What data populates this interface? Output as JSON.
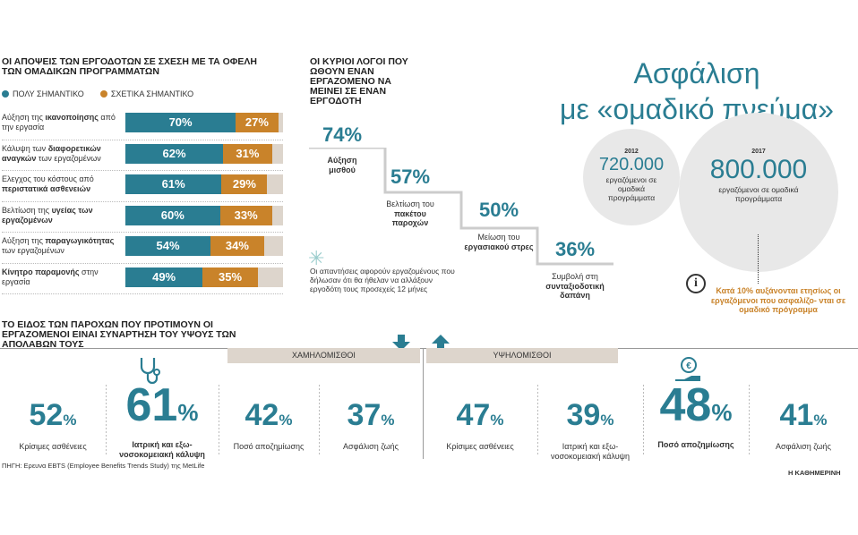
{
  "employer_views": {
    "title": "ΟΙ ΑΠΟΨΕΙΣ ΤΩΝ ΕΡΓΟΔΟΤΩΝ ΣΕ ΣΧΕΣΗ ΜΕ ΤΑ ΟΦΕΛΗ ΤΩΝ ΟΜΑΔΙΚΩΝ ΠΡΟΓΡΑΜΜΑΤΩΝ",
    "legend_a": "ΠΟΛΥ ΣΗΜΑΝΤΙΚΟ",
    "legend_b": "ΣΧΕΤΙΚΑ ΣΗΜΑΝΤΙΚΟ",
    "rows": [
      {
        "label_a": "Αύξηση της ",
        "label_b": "ικανοποίησης",
        "label_c": " από την εργασία",
        "a": "70%",
        "b": "27%"
      },
      {
        "label_a": "Κάλυψη των ",
        "label_b": "διαφορετικών αναγκών",
        "label_c": " των εργαζομένων",
        "a": "62%",
        "b": "31%"
      },
      {
        "label_a": "Ελεγχος του κόστους από ",
        "label_b": "περιστατικά ασθενειών",
        "label_c": "",
        "a": "61%",
        "b": "29%"
      },
      {
        "label_a": "Βελτίωση της ",
        "label_b": "υγείας των εργαζομένων",
        "label_c": "",
        "a": "60%",
        "b": "33%"
      },
      {
        "label_a": "Αύξηση της ",
        "label_b": "παραγωγικότητας",
        "label_c": " των εργαζομένων",
        "a": "54%",
        "b": "34%"
      },
      {
        "label_a": "",
        "label_b": "Κίνητρο παραμονής",
        "label_c": " στην εργασία",
        "a": "49%",
        "b": "35%"
      }
    ]
  },
  "reasons": {
    "title": "ΟΙ ΚΥΡΙΟΙ ΛΟΓΟΙ ΠΟΥ ΩΘΟΥΝ ΕΝΑΝ ΕΡΓΑΖΟΜΕΝΟ ΝΑ ΜΕΙΝΕΙ ΣΕ ΕΝΑΝ ΕΡΓΟΔΟΤΗ",
    "steps": [
      {
        "value": "74%",
        "label_plain": "",
        "label_bold": "Αύξηση μισθού"
      },
      {
        "value": "57%",
        "label_plain": "Βελτίωση του ",
        "label_bold": "πακέτου παροχών"
      },
      {
        "value": "50%",
        "label_plain": "Μείωση του ",
        "label_bold": "εργασιακού στρες"
      },
      {
        "value": "36%",
        "label_plain": "Συμβολή στη ",
        "label_bold": "συνταξιοδοτική δαπάνη"
      }
    ],
    "note": "Οι απαντήσεις αφορούν εργαζομένους που δήλωσαν ότι θα ήθελαν να αλλάξουν εργοδότη τους προσεχείς 12 μήνες"
  },
  "headline": {
    "line1": "Ασφάλιση",
    "line2": "με «ομαδικό πνεύμα»"
  },
  "circles": {
    "small_year": "2012",
    "small_value": "720.000",
    "small_label": "εργαζόμενοι σε ομαδικά προγράμματα",
    "big_year": "2017",
    "big_value": "800.000",
    "big_label": "εργαζόμενοι σε ομαδικά προγράμματα",
    "info_icon": "i",
    "info_text": "Κατά 10% αυξάνονται ετησίως οι εργαζόμενοι που ασφαλίζο- νται σε ομαδικό πρόγραμμα"
  },
  "benefits": {
    "title": "ΤΟ ΕΙΔΟΣ ΤΩΝ ΠΑΡΟΧΩΝ ΠΟΥ ΠΡΟΤΙΜΟΥΝ ΟΙ ΕΡΓΑΖΟΜΕΝΟΙ ΕΙΝΑΙ ΣΥΝΑΡΤΗΣΗ ΤΟΥ ΥΨΟΥΣ ΤΩΝ ΑΠΟΛΑΒΩΝ ΤΟΥΣ",
    "low_label": "ΧΑΜΗΛΟΜΙΣΘΟΙ",
    "high_label": "ΥΨΗΛΟΜΙΣΘΟΙ",
    "low": [
      {
        "value": "52",
        "label": "Κρίσιμες ασθένειες"
      },
      {
        "value": "61",
        "label": "Ιατρική και εξω- νοσοκομειακή κάλυψη"
      },
      {
        "value": "42",
        "label": "Ποσό αποζημίωσης"
      },
      {
        "value": "37",
        "label": "Ασφάλιση ζωής"
      }
    ],
    "high": [
      {
        "value": "47",
        "label": "Κρίσιμες ασθένειες"
      },
      {
        "value": "39",
        "label": "Ιατρική και εξω- νοσοκομειακή κάλυψη"
      },
      {
        "value": "48",
        "label": "Ποσό αποζημίωσης"
      },
      {
        "value": "41",
        "label": "Ασφάλιση ζωής"
      }
    ],
    "pct": "%"
  },
  "footer": {
    "source": "ΠΗΓΗ: Ερευνα EBTS (Employee Benefits Trends Study) της MetLife",
    "brand": "Η ΚΑΘΗΜΕΡΙΝΗ"
  },
  "chart_data": [
    {
      "type": "bar",
      "title": "ΟΙ ΑΠΟΨΕΙΣ ΤΩΝ ΕΡΓΟΔΟΤΩΝ ΣΕ ΣΧΕΣΗ ΜΕ ΤΑ ΟΦΕΛΗ ΤΩΝ ΟΜΑΔΙΚΩΝ ΠΡΟΓΡΑΜΜΑΤΩΝ",
      "categories": [
        "Αύξηση της ικανοποίησης από την εργασία",
        "Κάλυψη των διαφορετικών αναγκών των εργαζομένων",
        "Ελεγχος του κόστους από περιστατικά ασθενειών",
        "Βελτίωση της υγείας των εργαζομένων",
        "Αύξηση της παραγωγικότητας των εργαζομένων",
        "Κίνητρο παραμονής στην εργασία"
      ],
      "series": [
        {
          "name": "ΠΟΛΥ ΣΗΜΑΝΤΙΚΟ",
          "values": [
            70,
            62,
            61,
            60,
            54,
            49
          ],
          "color": "#2a7d92"
        },
        {
          "name": "ΣΧΕΤΙΚΑ ΣΗΜΑΝΤΙΚΟ",
          "values": [
            27,
            31,
            29,
            33,
            34,
            35
          ],
          "color": "#c9832a"
        }
      ]
    },
    {
      "type": "bar",
      "title": "ΟΙ ΚΥΡΙΟΙ ΛΟΓΟΙ ΠΟΥ ΩΘΟΥΝ ΕΝΑΝ ΕΡΓΑΖΟΜΕΝΟ ΝΑ ΜΕΙΝΕΙ ΣΕ ΕΝΑΝ ΕΡΓΟΔΟΤΗ",
      "categories": [
        "Αύξηση μισθού",
        "Βελτίωση του πακέτου παροχών",
        "Μείωση του εργασιακού στρες",
        "Συμβολή στη συνταξιοδοτική δαπάνη"
      ],
      "values": [
        74,
        57,
        50,
        36
      ]
    },
    {
      "type": "table",
      "categories": [
        "Κρίσιμες ασθένειες",
        "Ιατρική και εξω-νοσοκομειακή κάλυψη",
        "Ποσό αποζημίωσης",
        "Ασφάλιση ζωής"
      ],
      "series": [
        {
          "name": "ΧΑΜΗΛΟΜΙΣΘΟΙ",
          "values": [
            52,
            61,
            42,
            37
          ]
        },
        {
          "name": "ΥΨΗΛΟΜΙΣΘΟΙ",
          "values": [
            47,
            39,
            48,
            41
          ]
        }
      ]
    }
  ]
}
